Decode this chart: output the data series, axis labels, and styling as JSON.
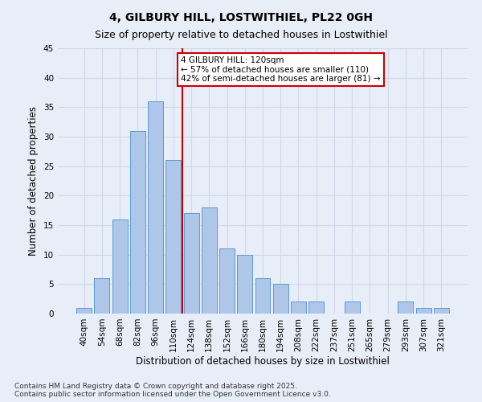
{
  "title": "4, GILBURY HILL, LOSTWITHIEL, PL22 0GH",
  "subtitle": "Size of property relative to detached houses in Lostwithiel",
  "xlabel": "Distribution of detached houses by size in Lostwithiel",
  "ylabel": "Number of detached properties",
  "categories": [
    "40sqm",
    "54sqm",
    "68sqm",
    "82sqm",
    "96sqm",
    "110sqm",
    "124sqm",
    "138sqm",
    "152sqm",
    "166sqm",
    "180sqm",
    "194sqm",
    "208sqm",
    "222sqm",
    "237sqm",
    "251sqm",
    "265sqm",
    "279sqm",
    "293sqm",
    "307sqm",
    "321sqm"
  ],
  "values": [
    1,
    6,
    16,
    31,
    36,
    26,
    17,
    18,
    11,
    10,
    6,
    5,
    2,
    2,
    0,
    2,
    0,
    0,
    2,
    1,
    1
  ],
  "bar_color": "#aec6e8",
  "bar_edge_color": "#5b9bd5",
  "vline_x_index": 5.5,
  "vline_color": "#cc0000",
  "annotation_text": "4 GILBURY HILL: 120sqm\n← 57% of detached houses are smaller (110)\n42% of semi-detached houses are larger (81) →",
  "annotation_box_facecolor": "#ffffff",
  "annotation_box_edgecolor": "#cc0000",
  "ylim": [
    0,
    45
  ],
  "yticks": [
    0,
    5,
    10,
    15,
    20,
    25,
    30,
    35,
    40,
    45
  ],
  "grid_color": "#d0d8e8",
  "background_color": "#e8eef8",
  "footer_text": "Contains HM Land Registry data © Crown copyright and database right 2025.\nContains public sector information licensed under the Open Government Licence v3.0.",
  "title_fontsize": 10,
  "subtitle_fontsize": 9,
  "xlabel_fontsize": 8.5,
  "ylabel_fontsize": 8.5,
  "tick_fontsize": 7.5,
  "annotation_fontsize": 7.5,
  "footer_fontsize": 6.5
}
